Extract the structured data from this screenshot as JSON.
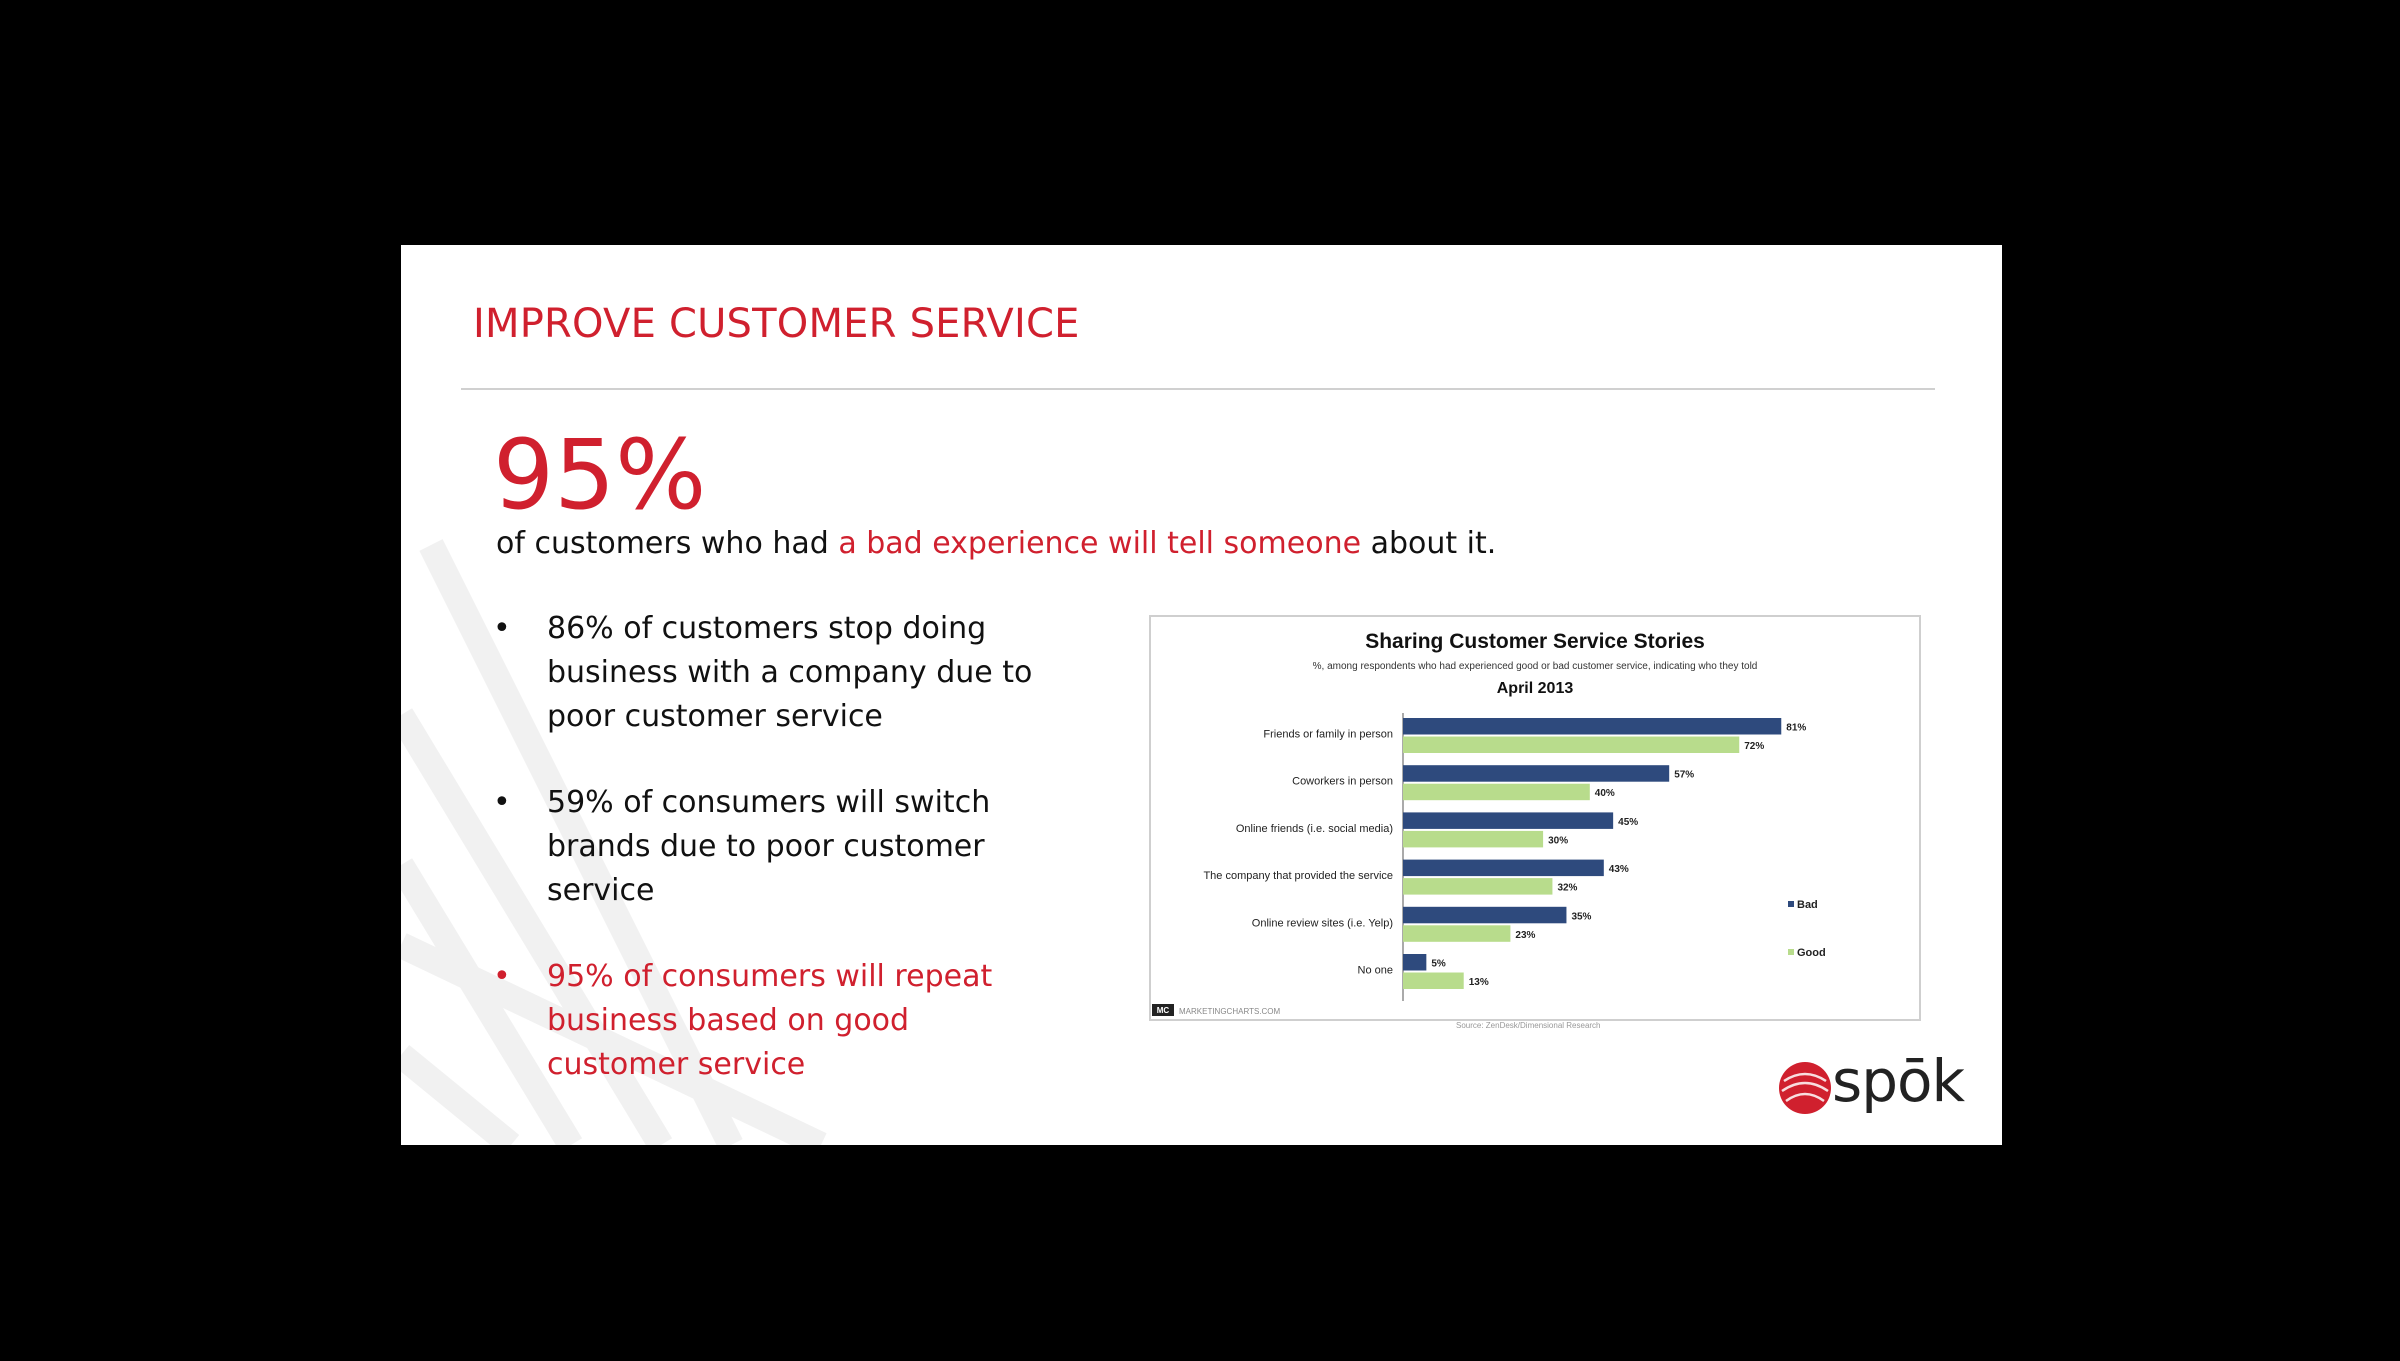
{
  "slide": {
    "title": "IMPROVE CUSTOMER SERVICE",
    "big_stat": "95%",
    "caption": {
      "before": "of customers who had ",
      "highlight": "a bad experience will tell someone",
      "after": " about it."
    },
    "bullets": [
      {
        "text": "86% of customers stop doing business with a company due to poor customer service",
        "color": "black"
      },
      {
        "text": "59% of consumers will switch brands due to poor customer service",
        "color": "black"
      },
      {
        "text": "95% of consumers will repeat business based on good customer service",
        "color": "red"
      }
    ],
    "bullet_glyph": "•",
    "logo": {
      "text": "spōk",
      "icon": "spok-logo-icon"
    },
    "colors": {
      "accent": "#d0202e",
      "bad": "#2e4a7d",
      "good": "#b8dc8c"
    }
  },
  "chart_data": {
    "type": "bar",
    "orientation": "horizontal",
    "title": "Sharing Customer Service Stories",
    "subtitle": "%, among respondents who had experienced good or bad customer service, indicating who they told",
    "date": "April 2013",
    "categories": [
      "Friends or family in person",
      "Coworkers in person",
      "Online friends (i.e. social media)",
      "The company that provided the service",
      "Online review sites (i.e. Yelp)",
      "No one"
    ],
    "series": [
      {
        "name": "Bad",
        "color": "#2e4a7d",
        "values": [
          81,
          57,
          45,
          43,
          35,
          5
        ]
      },
      {
        "name": "Good",
        "color": "#b8dc8c",
        "values": [
          72,
          40,
          30,
          32,
          23,
          13
        ]
      }
    ],
    "value_suffix": "%",
    "xlim": [
      0,
      100
    ],
    "legend_position": "right",
    "grid": false,
    "brand": "MARKETINGCHARTS.COM",
    "brand_badge": "MC",
    "source": "Source: ZenDesk/Dimensional Research"
  }
}
